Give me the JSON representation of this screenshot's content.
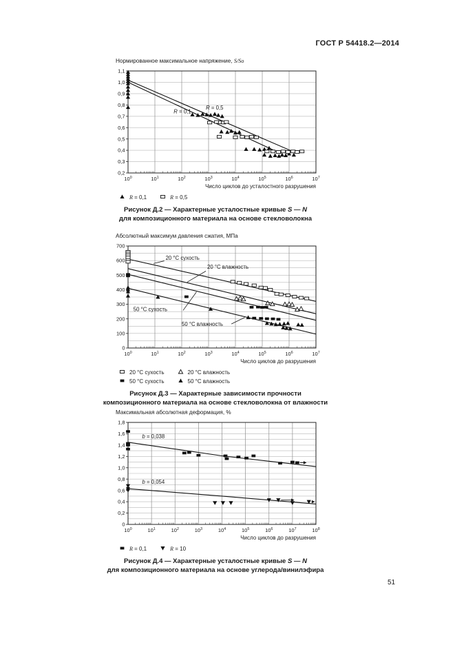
{
  "page": {
    "header": "ГОСТ Р 54418.2—2014",
    "page_number": "51"
  },
  "chart_data": [
    {
      "type": "scatter",
      "title_prefix": "Нормированное максимальное напряжение, ",
      "title_italic": "S/So",
      "xlabel": "Число циклов до усталостного разрушения",
      "x_exponents": [
        0,
        1,
        2,
        3,
        4,
        5,
        6,
        7
      ],
      "ylim": [
        0.2,
        1.1
      ],
      "y_grid_step": 0.1,
      "y_ticks": [
        [
          0.2,
          "0,2"
        ],
        [
          0.3,
          "0,3"
        ],
        [
          0.4,
          "0,4"
        ],
        [
          0.5,
          "0,5"
        ],
        [
          0.6,
          "0,6"
        ],
        [
          0.7,
          "0,7"
        ],
        [
          0.8,
          "0,8"
        ],
        [
          0.9,
          "0,9"
        ],
        [
          1.0,
          "1,0"
        ],
        [
          1.1,
          "1,1"
        ]
      ],
      "lines": [
        {
          "name": "R = 0,1",
          "points": [
            [
              1,
              1.0
            ],
            [
              500000,
              0.37
            ]
          ]
        },
        {
          "name": "R = 0,5",
          "points": [
            [
              1,
              1.02
            ],
            [
              1200000,
              0.395
            ]
          ]
        }
      ],
      "leaders": [],
      "annotations": [
        {
          "var": "R",
          "rest": " = 0,1",
          "x_exp": 1.7,
          "y": 0.725
        },
        {
          "var": "R",
          "rest": " = 0,5",
          "x_exp": 2.9,
          "y": 0.758
        }
      ],
      "series": [
        {
          "name": "R = 0,1",
          "marker": "tri-filled",
          "points": [
            [
              1,
              1.09
            ],
            [
              1,
              1.07
            ],
            [
              1,
              1.05
            ],
            [
              1,
              1.03
            ],
            [
              1,
              1.01
            ],
            [
              1,
              0.99
            ],
            [
              1,
              0.96
            ],
            [
              1,
              0.93
            ],
            [
              1,
              0.9
            ],
            [
              1,
              0.87
            ],
            [
              1,
              0.78
            ],
            [
              250,
              0.715
            ],
            [
              400,
              0.71
            ],
            [
              600,
              0.72
            ],
            [
              850,
              0.715
            ],
            [
              1200,
              0.71
            ],
            [
              1700,
              0.72
            ],
            [
              2300,
              0.71
            ],
            [
              3200,
              0.7
            ],
            [
              3000,
              0.565
            ],
            [
              5000,
              0.56
            ],
            [
              7000,
              0.57
            ],
            [
              10000,
              0.555
            ],
            [
              14000,
              0.56
            ],
            [
              25000,
              0.41
            ],
            [
              50000,
              0.41
            ],
            [
              80000,
              0.405
            ],
            [
              120000,
              0.41
            ],
            [
              180000,
              0.42
            ],
            [
              120000,
              0.36
            ],
            [
              200000,
              0.35
            ],
            [
              300000,
              0.355
            ],
            [
              420000,
              0.35
            ],
            [
              550000,
              0.36
            ],
            [
              750000,
              0.355
            ],
            [
              1000000,
              0.37
            ],
            [
              1500000,
              0.36
            ]
          ]
        },
        {
          "name": "R = 0,5",
          "marker": "sq-open",
          "points": [
            [
              1100,
              0.645
            ],
            [
              2000,
              0.65
            ],
            [
              2800,
              0.648
            ],
            [
              3600,
              0.645
            ],
            [
              4600,
              0.65
            ],
            [
              2500,
              0.52
            ],
            [
              10000,
              0.515
            ],
            [
              18000,
              0.52
            ],
            [
              27000,
              0.515
            ],
            [
              40000,
              0.52
            ],
            [
              60000,
              0.515
            ],
            [
              150000,
              0.39
            ],
            [
              250000,
              0.39
            ],
            [
              400000,
              0.385
            ],
            [
              600000,
              0.39
            ],
            [
              900000,
              0.385
            ],
            [
              1400000,
              0.39
            ],
            [
              2000000,
              0.385
            ],
            [
              3000000,
              0.39
            ]
          ]
        }
      ],
      "legend_rows": [
        [
          {
            "marker": "tri-filled",
            "var": "R",
            "text": " = 0,1"
          },
          {
            "marker": "sq-open",
            "var": "R",
            "text": " = 0,5"
          }
        ]
      ],
      "caption1_prefix": "Рисунок Д.2 — Характерные усталостные кривые ",
      "caption1_italic": "S — N",
      "caption2": "для композиционного материала на основе стекловолокна"
    },
    {
      "type": "scatter",
      "title_prefix": "Абсолютный максимум давления сжатия, МПа",
      "title_italic": "",
      "xlabel": "Число циклов до разрушения",
      "x_exponents": [
        0,
        1,
        2,
        3,
        4,
        5,
        6,
        7
      ],
      "ylim": [
        0,
        700
      ],
      "y_grid_step": 50,
      "y_ticks": [
        [
          0,
          "0"
        ],
        [
          100,
          "100"
        ],
        [
          200,
          "200"
        ],
        [
          300,
          "300"
        ],
        [
          400,
          "400"
        ],
        [
          500,
          "500"
        ],
        [
          600,
          "600"
        ],
        [
          700,
          "700"
        ]
      ],
      "lines": [
        {
          "name": "20 °C сухость",
          "points": [
            [
              1,
              610
            ],
            [
              10000000,
              320
            ]
          ]
        },
        {
          "name": "20 °C влажность",
          "points": [
            [
              1,
              545
            ],
            [
              10000000,
              235
            ]
          ]
        },
        {
          "name": "50 °C сухость",
          "points": [
            [
              1,
              505
            ],
            [
              10000000,
              190
            ]
          ]
        },
        {
          "name": "50 °C влажность",
          "points": [
            [
              1,
              410
            ],
            [
              10000000,
              95
            ]
          ]
        }
      ],
      "leaders": [
        [
          0.95,
          580,
          1.35,
          598
        ],
        [
          2.2,
          452,
          2.9,
          528
        ],
        [
          2.05,
          258,
          2.55,
          385
        ],
        [
          3.85,
          165,
          4.35,
          210
        ]
      ],
      "annotations": [
        {
          "var": "",
          "rest": "20 °C сухость",
          "x_exp": 1.4,
          "y": 605
        },
        {
          "var": "",
          "rest": "20 °C влажность",
          "x_exp": 2.95,
          "y": 545
        },
        {
          "var": "",
          "rest": "50 °C сухость",
          "x_exp": 0.2,
          "y": 252
        },
        {
          "var": "",
          "rest": "50 °C влажность",
          "x_exp": 2.0,
          "y": 152
        }
      ],
      "series": [
        {
          "name": "20 °C сухость",
          "marker": "sq-open",
          "points": [
            [
              1,
              660
            ],
            [
              1,
              648
            ],
            [
              1,
              636
            ],
            [
              1,
              622
            ],
            [
              1,
              605
            ],
            [
              1,
              592
            ],
            [
              8000,
              455
            ],
            [
              14000,
              448
            ],
            [
              25000,
              440
            ],
            [
              50000,
              430
            ],
            [
              90000,
              415
            ],
            [
              130000,
              412
            ],
            [
              200000,
              400
            ],
            [
              350000,
              372
            ],
            [
              500000,
              368
            ],
            [
              900000,
              362
            ],
            [
              1600000,
              352
            ],
            [
              2800000,
              345
            ],
            [
              4500000,
              340
            ]
          ]
        },
        {
          "name": "20 °C влажность",
          "marker": "tri-open",
          "points": [
            [
              11000,
              338
            ],
            [
              15000,
              342
            ],
            [
              20000,
              335
            ],
            [
              160000,
              308
            ],
            [
              240000,
              302
            ],
            [
              700000,
              300
            ],
            [
              1000000,
              302
            ],
            [
              1300000,
              298
            ],
            [
              2000000,
              265
            ],
            [
              2800000,
              270
            ]
          ]
        },
        {
          "name": "50 °C сухость",
          "marker": "sq-filled",
          "points": [
            [
              1,
              505
            ],
            [
              1,
              495
            ],
            [
              150,
              352
            ],
            [
              40000,
              280
            ],
            [
              70000,
              281
            ],
            [
              100000,
              279
            ],
            [
              140000,
              280
            ],
            [
              50000,
              205
            ],
            [
              90000,
              203
            ],
            [
              150000,
              201
            ],
            [
              250000,
              200
            ],
            [
              400000,
              197
            ]
          ]
        },
        {
          "name": "50 °C влажность",
          "marker": "tri-filled",
          "points": [
            [
              1,
              415
            ],
            [
              1,
              402
            ],
            [
              1,
              388
            ],
            [
              1,
              358
            ],
            [
              13,
              350
            ],
            [
              1200,
              268
            ],
            [
              30000,
              210
            ],
            [
              150000,
              170
            ],
            [
              220000,
              166
            ],
            [
              320000,
              162
            ],
            [
              450000,
              164
            ],
            [
              650000,
              167
            ],
            [
              900000,
              170
            ],
            [
              600000,
              140
            ],
            [
              800000,
              136
            ],
            [
              1100000,
              133
            ],
            [
              2200000,
              160
            ],
            [
              3000000,
              158
            ]
          ]
        }
      ],
      "legend_rows": [
        [
          {
            "marker": "sq-open",
            "var": "",
            "text": "20 °C сухость"
          },
          {
            "marker": "tri-open",
            "var": "",
            "text": "20 °C влажность"
          }
        ],
        [
          {
            "marker": "sq-filled",
            "var": "",
            "text": "50 °C сухость"
          },
          {
            "marker": "tri-filled",
            "var": "",
            "text": "50 °C влажность"
          }
        ]
      ],
      "caption1_prefix": "Рисунок Д.3 — Характерные зависимости прочности",
      "caption1_italic": "",
      "caption2": "композиционного материала на основе стекловолокна от влажности"
    },
    {
      "type": "scatter",
      "title_prefix": "Максимальная абсолютная деформация, %",
      "title_italic": "",
      "xlabel": "Число циклов до разрушения",
      "x_exponents": [
        0,
        1,
        2,
        3,
        4,
        5,
        6,
        7,
        8
      ],
      "ylim": [
        0,
        1.8
      ],
      "y_grid_step": 0.1,
      "y_ticks": [
        [
          0,
          "0"
        ],
        [
          0.2,
          "0,2"
        ],
        [
          0.4,
          "0,4"
        ],
        [
          0.6,
          "0,6"
        ],
        [
          0.8,
          "0,8"
        ],
        [
          1.0,
          "1,0"
        ],
        [
          1.2,
          "1,2"
        ],
        [
          1.4,
          "1,4"
        ],
        [
          1.6,
          "1,6"
        ],
        [
          1.8,
          "1,8"
        ]
      ],
      "lines": [
        {
          "name": "b = 0,038",
          "points": [
            [
              1,
              1.45
            ],
            [
              10000,
              1.21
            ],
            [
              100000000,
              1.02
            ]
          ]
        },
        {
          "name": "b = 0,054",
          "points": [
            [
              1,
              0.63
            ],
            [
              10000,
              0.5
            ],
            [
              100000000,
              0.36
            ]
          ]
        }
      ],
      "leaders": [],
      "annotations": [
        {
          "var": "b",
          "rest": " = 0,038",
          "x_exp": 0.6,
          "y": 1.52
        },
        {
          "var": "b",
          "rest": " = 0,054",
          "x_exp": 0.6,
          "y": 0.72
        }
      ],
      "series": [
        {
          "name": "R = 0,1",
          "marker": "sq-filled",
          "points": [
            [
              1,
              1.64
            ],
            [
              1,
              1.43
            ],
            [
              1,
              1.4
            ],
            [
              1,
              1.33
            ],
            [
              250,
              1.26
            ],
            [
              400,
              1.27
            ],
            [
              1000,
              1.22
            ],
            [
              14000,
              1.21
            ],
            [
              16000,
              1.16
            ],
            [
              50000,
              1.19
            ],
            [
              110000,
              1.17
            ],
            [
              220000,
              1.21
            ],
            [
              3000000,
              1.08
            ],
            [
              10000000,
              1.1
            ],
            [
              16000000,
              1.09,
              40000000
            ]
          ]
        },
        {
          "name": "R = 10",
          "marker": "tri-down-filled",
          "points": [
            [
              1,
              0.68
            ],
            [
              1,
              0.63
            ],
            [
              1,
              0.6
            ],
            [
              5000,
              0.38
            ],
            [
              11000,
              0.38
            ],
            [
              24000,
              0.38
            ],
            [
              1000000,
              0.43
            ],
            [
              2500000,
              0.43,
              12000000
            ],
            [
              10000000,
              0.38
            ],
            [
              50000000,
              0.4,
              90000000
            ]
          ]
        }
      ],
      "legend_rows": [
        [
          {
            "marker": "sq-filled",
            "var": "R",
            "text": " = 0,1"
          },
          {
            "marker": "tri-down-filled",
            "var": "R",
            "text": " = 10"
          }
        ]
      ],
      "caption1_prefix": "Рисунок Д.4 — Характерные усталостные кривые ",
      "caption1_italic": "S — N",
      "caption2": "для композиционного материала на основе углерода/винилэфира"
    }
  ]
}
